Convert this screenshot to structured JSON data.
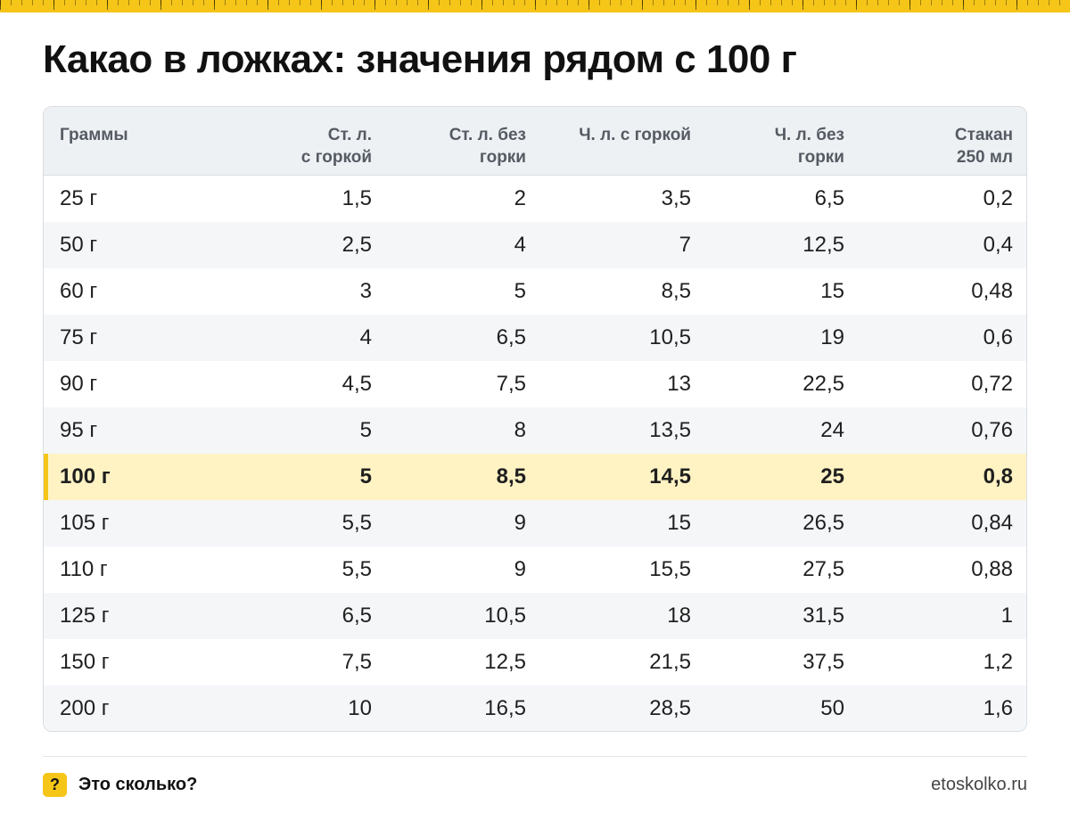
{
  "title": "Какао в ложках: значения рядом с 100 г",
  "table": {
    "headers": [
      [
        "Граммы"
      ],
      [
        "Ст. л.",
        "с горкой"
      ],
      [
        "Ст. л. без",
        "горки"
      ],
      [
        "Ч. л. с горкой"
      ],
      [
        "Ч. л. без",
        "горки"
      ],
      [
        "Стакан",
        "250 мл"
      ]
    ],
    "highlight_row": 6,
    "rows": [
      [
        "25 г",
        "1,5",
        "2",
        "3,5",
        "6,5",
        "0,2"
      ],
      [
        "50 г",
        "2,5",
        "4",
        "7",
        "12,5",
        "0,4"
      ],
      [
        "60 г",
        "3",
        "5",
        "8,5",
        "15",
        "0,48"
      ],
      [
        "75 г",
        "4",
        "6,5",
        "10,5",
        "19",
        "0,6"
      ],
      [
        "90 г",
        "4,5",
        "7,5",
        "13",
        "22,5",
        "0,72"
      ],
      [
        "95 г",
        "5",
        "8",
        "13,5",
        "24",
        "0,76"
      ],
      [
        "100 г",
        "5",
        "8,5",
        "14,5",
        "25",
        "0,8"
      ],
      [
        "105 г",
        "5,5",
        "9",
        "15",
        "26,5",
        "0,84"
      ],
      [
        "110 г",
        "5,5",
        "9",
        "15,5",
        "27,5",
        "0,88"
      ],
      [
        "125 г",
        "6,5",
        "10,5",
        "18",
        "31,5",
        "1"
      ],
      [
        "150 г",
        "7,5",
        "12,5",
        "21,5",
        "37,5",
        "1,2"
      ],
      [
        "200 г",
        "10",
        "16,5",
        "28,5",
        "50",
        "1,6"
      ]
    ]
  },
  "footer": {
    "badge": "?",
    "brand": "Это сколько?",
    "site": "etoskolko.ru"
  },
  "colors": {
    "accent": "#f5c518",
    "highlight_row": "#fff3c4",
    "header_bg": "#eef1f4",
    "stripe": "#f4f6f8"
  }
}
